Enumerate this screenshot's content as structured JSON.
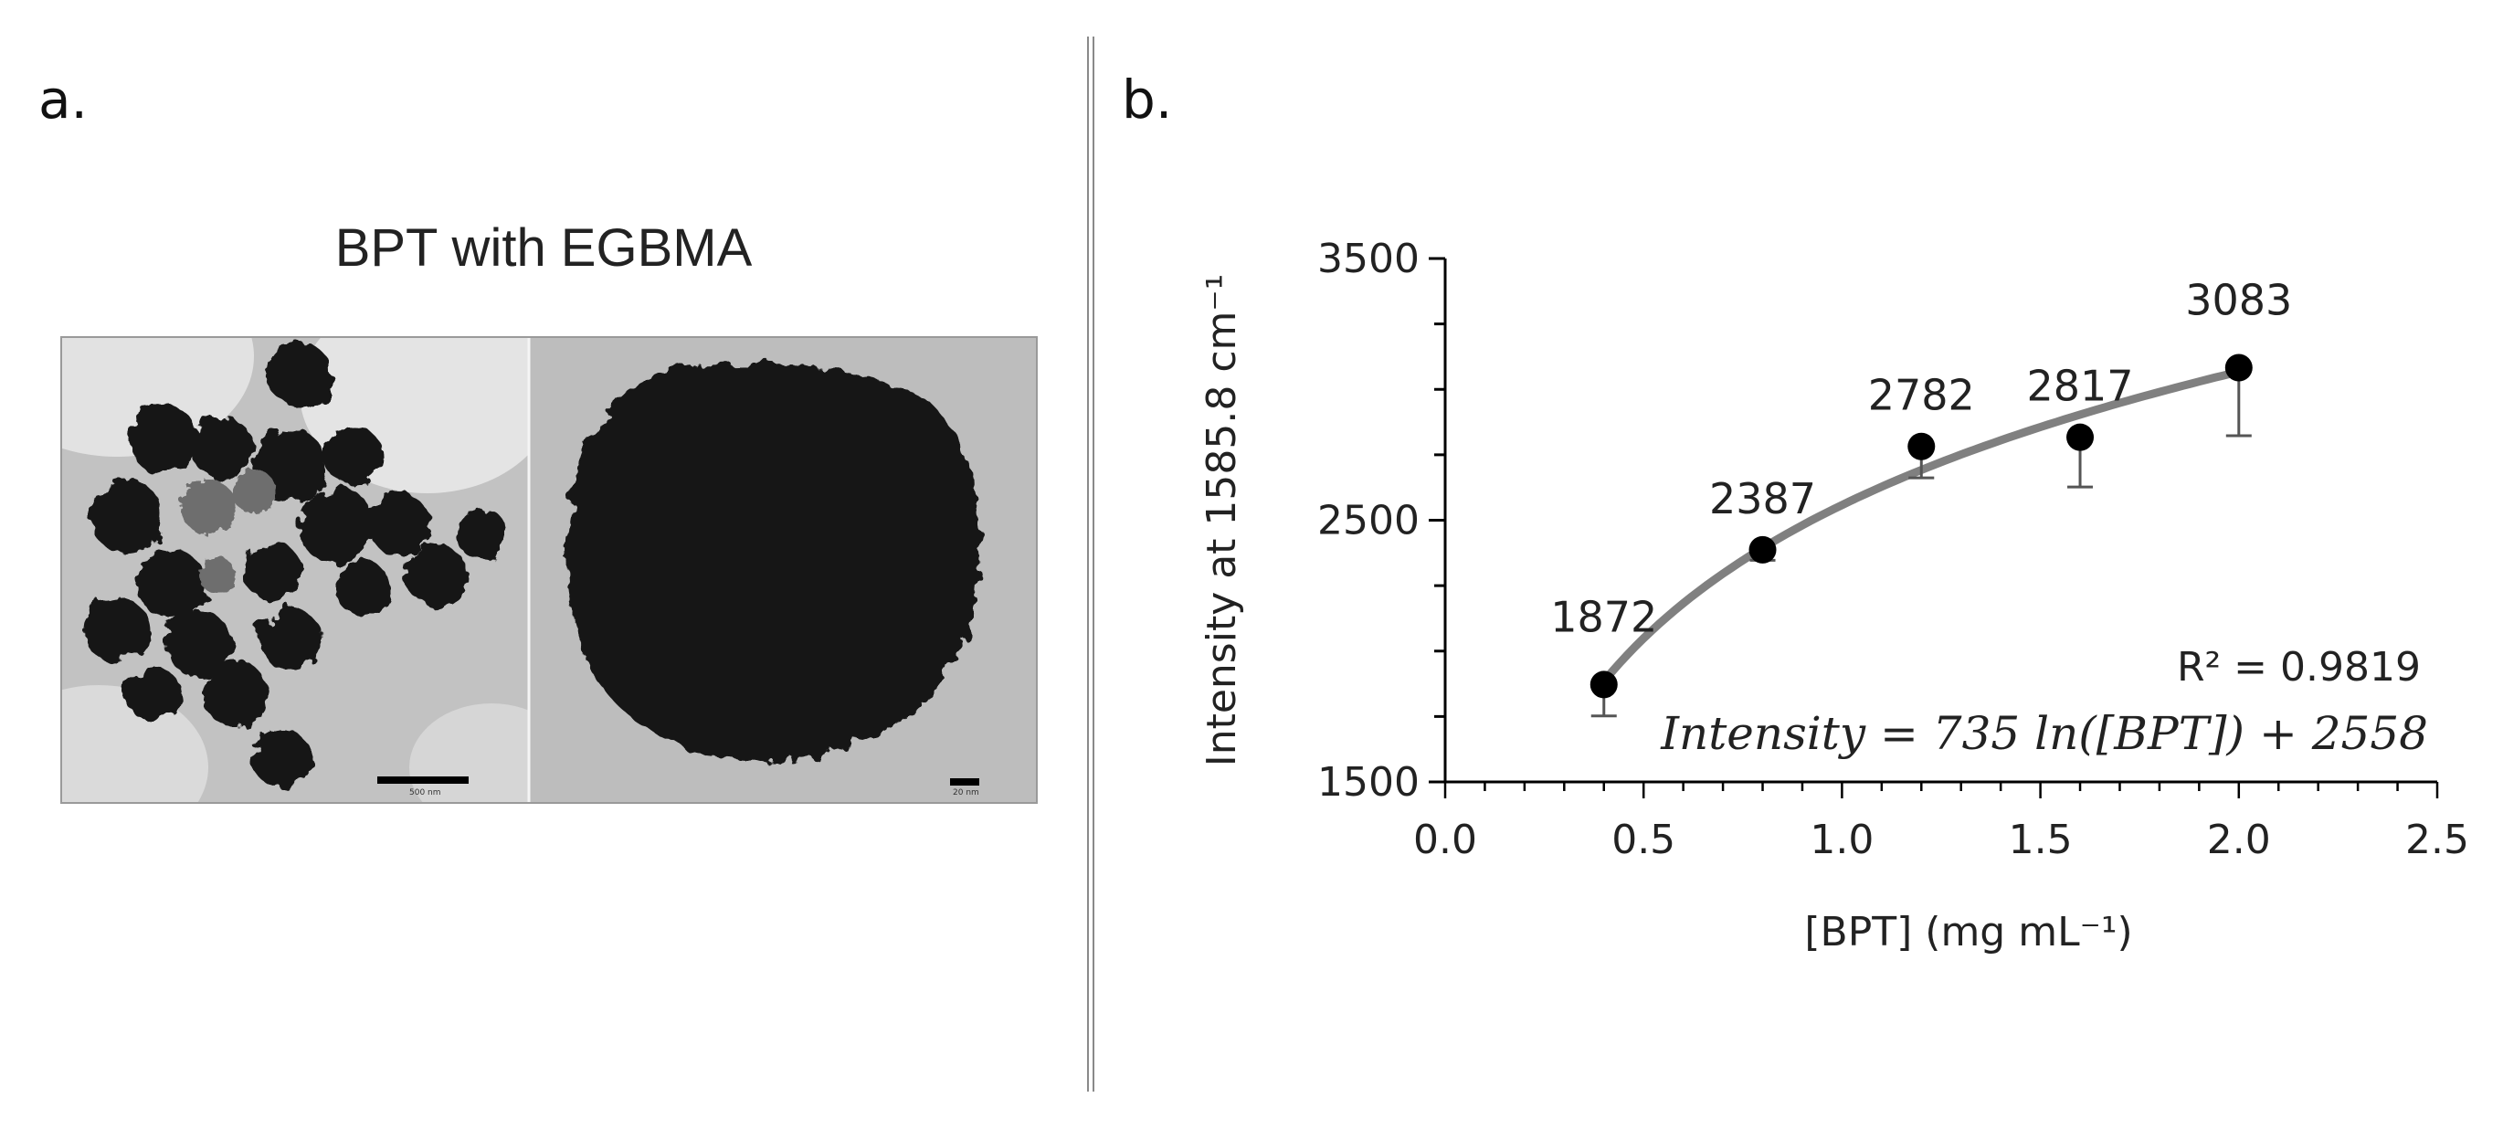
{
  "panels": {
    "a_label": "a.",
    "b_label": "b."
  },
  "tem": {
    "title": "BPT with EGBMA",
    "left_scalebar": "500 nm",
    "right_scalebar": "20 nm"
  },
  "chart_data": {
    "type": "scatter",
    "xlabel": "[BPT] (mg mL⁻¹)",
    "ylabel": "Intensity at 1585.8 cm⁻¹",
    "xlim": [
      0.0,
      2.5
    ],
    "ylim": [
      1500,
      3500
    ],
    "x_ticks": [
      0.0,
      0.5,
      1.0,
      1.5,
      2.0,
      2.5
    ],
    "x_tick_labels": [
      "0.0",
      "0.5",
      "1.0",
      "1.5",
      "2.0",
      "2.5"
    ],
    "y_ticks": [
      1500,
      2500,
      3500
    ],
    "y_tick_labels": [
      "1500",
      "2500",
      "3500"
    ],
    "grid": false,
    "series": [
      {
        "x": [
          0.4,
          0.8,
          1.2,
          1.6,
          2.0
        ],
        "y": [
          1872,
          2387,
          2782,
          2817,
          3083
        ],
        "error": [
          120,
          40,
          120,
          190,
          260
        ],
        "data_labels": [
          "1872",
          "2387",
          "2782",
          "2817",
          "3083"
        ]
      }
    ],
    "fit": {
      "type": "log",
      "a": 735,
      "b": 2558,
      "r2_label": "R² = 0.9819",
      "equation_label": "Intensity = 735 ln([BPT]) + 2558"
    },
    "colors": {
      "points": "#000000",
      "fit_line": "#808080",
      "error_bars": "#555555"
    }
  }
}
